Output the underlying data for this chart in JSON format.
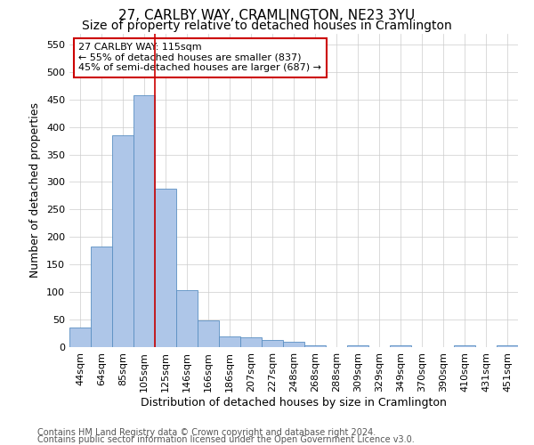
{
  "title": "27, CARLBY WAY, CRAMLINGTON, NE23 3YU",
  "subtitle": "Size of property relative to detached houses in Cramlington",
  "xlabel": "Distribution of detached houses by size in Cramlington",
  "ylabel": "Number of detached properties",
  "bar_labels": [
    "44sqm",
    "64sqm",
    "85sqm",
    "105sqm",
    "125sqm",
    "146sqm",
    "166sqm",
    "186sqm",
    "207sqm",
    "227sqm",
    "248sqm",
    "268sqm",
    "288sqm",
    "309sqm",
    "329sqm",
    "349sqm",
    "370sqm",
    "390sqm",
    "410sqm",
    "431sqm",
    "451sqm"
  ],
  "bar_values": [
    35,
    183,
    385,
    457,
    288,
    103,
    48,
    20,
    18,
    13,
    9,
    3,
    0,
    4,
    0,
    4,
    0,
    0,
    3,
    0,
    3
  ],
  "bar_color": "#aec6e8",
  "bar_edge_color": "#5a8fc2",
  "property_line_x": 3.5,
  "property_line_color": "#cc0000",
  "annotation_line1": "27 CARLBY WAY: 115sqm",
  "annotation_line2": "← 55% of detached houses are smaller (837)",
  "annotation_line3": "45% of semi-detached houses are larger (687) →",
  "annotation_box_color": "#ffffff",
  "annotation_box_edge_color": "#cc0000",
  "ylim": [
    0,
    570
  ],
  "yticks": [
    0,
    50,
    100,
    150,
    200,
    250,
    300,
    350,
    400,
    450,
    500,
    550
  ],
  "footer_line1": "Contains HM Land Registry data © Crown copyright and database right 2024.",
  "footer_line2": "Contains public sector information licensed under the Open Government Licence v3.0.",
  "bg_color": "#ffffff",
  "grid_color": "#cccccc",
  "title_fontsize": 11,
  "subtitle_fontsize": 10,
  "axis_label_fontsize": 9,
  "tick_fontsize": 8,
  "annotation_fontsize": 8,
  "footer_fontsize": 7
}
